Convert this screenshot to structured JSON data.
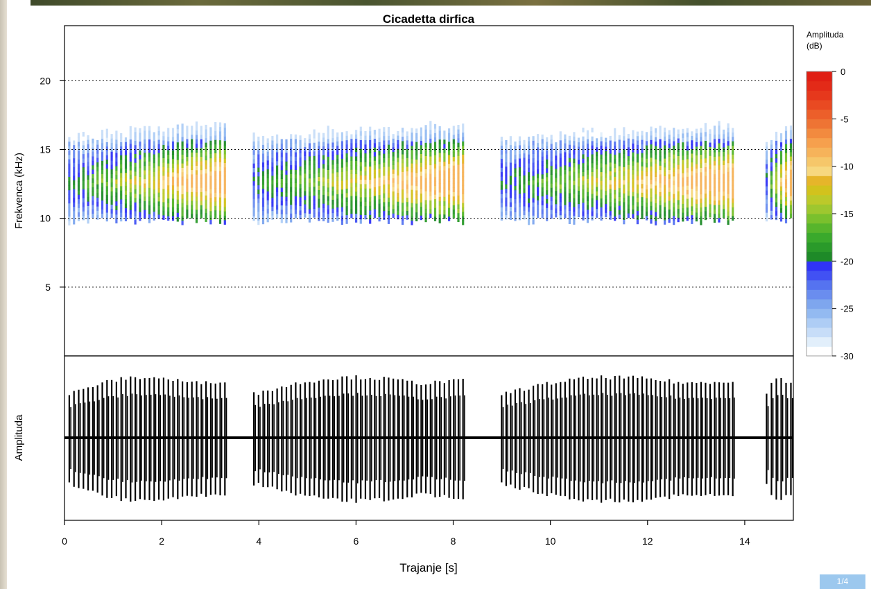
{
  "chart_data": {
    "type": "spectrogram",
    "title": "Cicadetta dirfica",
    "xlabel": "Trajanje [s]",
    "xlim": [
      0,
      15
    ],
    "xticks": [
      0,
      2,
      4,
      6,
      8,
      10,
      12,
      14
    ],
    "spectrogram": {
      "ylabel": "Frekvenca (kHz)",
      "ylim": [
        0,
        24
      ],
      "yticks": [
        5,
        10,
        15,
        20
      ],
      "grid": "dotted horizontal at y ticks",
      "colorbar": {
        "label": "Amplituda (dB)",
        "range": [
          -30,
          0
        ],
        "ticks": [
          0,
          -5,
          -10,
          -15,
          -20,
          -25,
          -30
        ],
        "colors": [
          "#ffffff",
          "#e2effb",
          "#c7ddf8",
          "#aecdf5",
          "#93baf1",
          "#7ea6ee",
          "#6a8def",
          "#5573f0",
          "#4151f3",
          "#3033f5",
          "#1e8a28",
          "#2a9a2a",
          "#3aa92c",
          "#57b52c",
          "#7ac02d",
          "#9ec72f",
          "#bcc92a",
          "#d2c21d",
          "#e6b52a",
          "#f7d880",
          "#f6c76a",
          "#f6b35a",
          "#f6a04d",
          "#f28a3f",
          "#ee7434",
          "#ec5f2a",
          "#e94a22",
          "#e6381c",
          "#e32a18",
          "#e01f14"
        ]
      },
      "energy_band_khz": [
        9.5,
        17
      ],
      "peak_band_khz": [
        11,
        14
      ]
    },
    "waveform": {
      "ylabel": "Amplituda"
    },
    "phrases": [
      {
        "start": 0.05,
        "end": 3.35,
        "pulses": 34
      },
      {
        "start": 3.85,
        "end": 8.25,
        "pulses": 46
      },
      {
        "start": 8.95,
        "end": 13.8,
        "pulses": 52
      },
      {
        "start": 14.4,
        "end": 15.0,
        "pulses": 6
      }
    ]
  },
  "ui": {
    "page_badge": "1/4"
  }
}
